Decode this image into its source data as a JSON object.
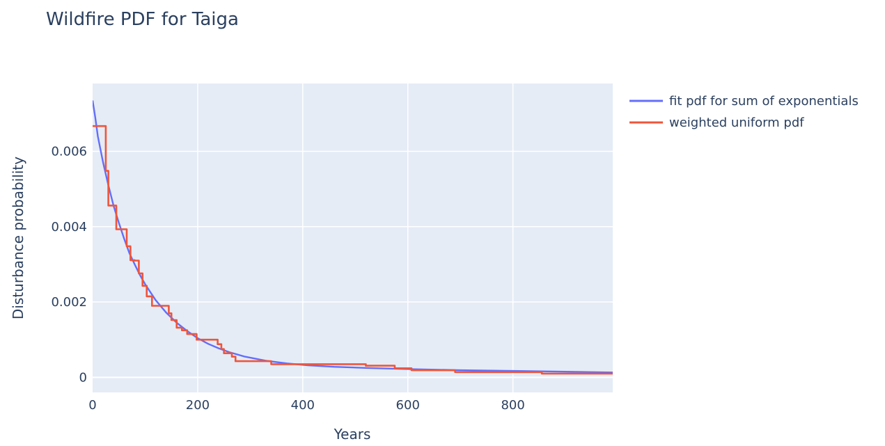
{
  "chart_data": {
    "type": "line",
    "title": "Wildfire PDF for Taiga",
    "xlabel": "Years",
    "ylabel": "Disturbance probability",
    "xlim": [
      0,
      990
    ],
    "ylim": [
      -0.0004,
      0.0078
    ],
    "x_ticks": [
      0,
      200,
      400,
      600,
      800
    ],
    "x_tick_labels": [
      "0",
      "200",
      "400",
      "600",
      "800"
    ],
    "y_ticks": [
      0,
      0.002,
      0.004,
      0.006
    ],
    "y_tick_labels": [
      "0",
      "0.002",
      "0.004",
      "0.006"
    ],
    "grid": true,
    "legend_position": "top-right, outside plot",
    "plot_bg": "#e5ecf6",
    "series": [
      {
        "name": "fit pdf for sum of exponentials",
        "color": "#636efa",
        "style": "line",
        "x": [
          0,
          5,
          10,
          20,
          30,
          40,
          50,
          60,
          70,
          80,
          90,
          100,
          120,
          140,
          160,
          180,
          200,
          220,
          240,
          260,
          290,
          330,
          370,
          410,
          460,
          520,
          600,
          700,
          800,
          900,
          990
        ],
        "y": [
          0.00735,
          0.0069,
          0.0064,
          0.0057,
          0.0051,
          0.00455,
          0.0041,
          0.00368,
          0.0033,
          0.003,
          0.00272,
          0.00247,
          0.00205,
          0.00172,
          0.00145,
          0.00123,
          0.00104,
          0.00089,
          0.00077,
          0.00067,
          0.00055,
          0.00044,
          0.00037,
          0.00032,
          0.00028,
          0.00025,
          0.00022,
          0.00019,
          0.00017,
          0.00015,
          0.00013
        ]
      },
      {
        "name": "weighted uniform pdf",
        "color": "#ef553b",
        "style": "step",
        "x": [
          0,
          25,
          25,
          30,
          30,
          45,
          45,
          65,
          65,
          72,
          72,
          80,
          80,
          88,
          88,
          95,
          95,
          103,
          103,
          113,
          113,
          145,
          145,
          150,
          150,
          160,
          160,
          170,
          170,
          180,
          180,
          198,
          198,
          238,
          238,
          245,
          245,
          250,
          250,
          265,
          265,
          272,
          272,
          340,
          340,
          520,
          520,
          575,
          575,
          607,
          607,
          690,
          690,
          855,
          855,
          990
        ],
        "y": [
          0.00667,
          0.00667,
          0.00548,
          0.00548,
          0.00456,
          0.00456,
          0.00393,
          0.00393,
          0.00348,
          0.00348,
          0.00311,
          0.00311,
          0.0031,
          0.0031,
          0.00276,
          0.00276,
          0.00243,
          0.00243,
          0.00215,
          0.00215,
          0.0019,
          0.0019,
          0.0017,
          0.0017,
          0.00152,
          0.00152,
          0.00132,
          0.00132,
          0.00125,
          0.00125,
          0.00115,
          0.00115,
          0.001,
          0.001,
          0.00088,
          0.00088,
          0.00075,
          0.00075,
          0.00064,
          0.00064,
          0.00055,
          0.00055,
          0.00043,
          0.00043,
          0.00035,
          0.00035,
          0.00031,
          0.00031,
          0.00024,
          0.00024,
          0.00019,
          0.00019,
          0.00014,
          0.00014,
          0.0001,
          0.0001
        ]
      }
    ]
  }
}
